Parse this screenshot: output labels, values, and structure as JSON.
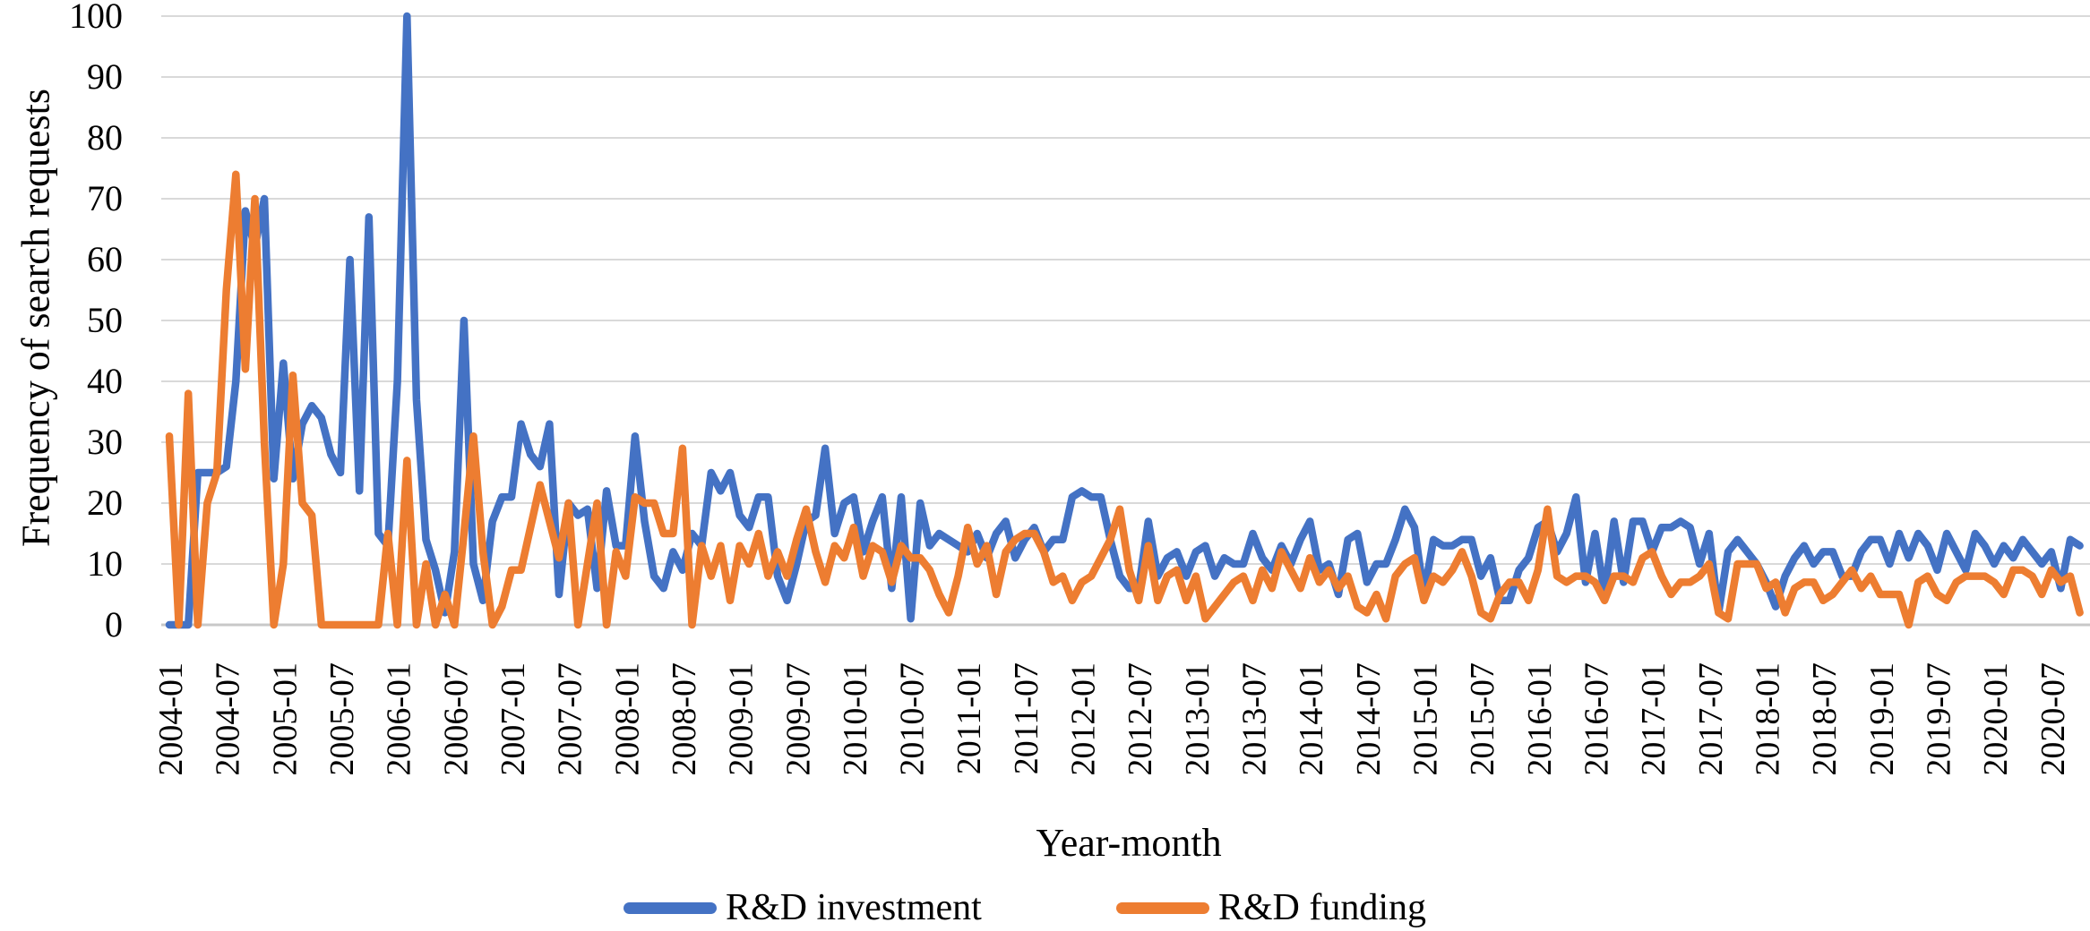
{
  "axes": {
    "x_title": "Year-month",
    "y_title": "Frequency of search requests"
  },
  "legend": {
    "items": [
      {
        "label": "R&D investment",
        "color": "#4472C4"
      },
      {
        "label": "R&D funding",
        "color": "#ED7D31"
      }
    ]
  },
  "chart_data": {
    "type": "line",
    "title": "",
    "xlabel": "Year-month",
    "ylabel": "Frequency of search requests",
    "ylim": [
      0,
      100
    ],
    "y_ticks": [
      100,
      90,
      80,
      70,
      60,
      50,
      40,
      30,
      20,
      10,
      0
    ],
    "grid": "horizontal",
    "gridline_color": "#D9D9D9",
    "axis_line_color": "#C8C8C8",
    "legend_position": "bottom",
    "x_interval": "monthly",
    "x_tick_labels": [
      "2004-01",
      "2004-07",
      "2005-01",
      "2005-07",
      "2006-01",
      "2006-07",
      "2007-01",
      "2007-07",
      "2008-01",
      "2008-07",
      "2009-01",
      "2009-07",
      "2010-01",
      "2010-07",
      "2011-01",
      "2011-07",
      "2012-01",
      "2012-07",
      "2013-01",
      "2013-07",
      "2014-01",
      "2014-07",
      "2015-01",
      "2015-07",
      "2016-01",
      "2016-07",
      "2017-01",
      "2017-07",
      "2018-01",
      "2018-07",
      "2019-01",
      "2019-07",
      "2020-01",
      "2020-07"
    ],
    "categories": [
      "2004-01",
      "2004-02",
      "2004-03",
      "2004-04",
      "2004-05",
      "2004-06",
      "2004-07",
      "2004-08",
      "2004-09",
      "2004-10",
      "2004-11",
      "2004-12",
      "2005-01",
      "2005-02",
      "2005-03",
      "2005-04",
      "2005-05",
      "2005-06",
      "2005-07",
      "2005-08",
      "2005-09",
      "2005-10",
      "2005-11",
      "2005-12",
      "2006-01",
      "2006-02",
      "2006-03",
      "2006-04",
      "2006-05",
      "2006-06",
      "2006-07",
      "2006-08",
      "2006-09",
      "2006-10",
      "2006-11",
      "2006-12",
      "2007-01",
      "2007-02",
      "2007-03",
      "2007-04",
      "2007-05",
      "2007-06",
      "2007-07",
      "2007-08",
      "2007-09",
      "2007-10",
      "2007-11",
      "2007-12",
      "2008-01",
      "2008-02",
      "2008-03",
      "2008-04",
      "2008-05",
      "2008-06",
      "2008-07",
      "2008-08",
      "2008-09",
      "2008-10",
      "2008-11",
      "2008-12",
      "2009-01",
      "2009-02",
      "2009-03",
      "2009-04",
      "2009-05",
      "2009-06",
      "2009-07",
      "2009-08",
      "2009-09",
      "2009-10",
      "2009-11",
      "2009-12",
      "2010-01",
      "2010-02",
      "2010-03",
      "2010-04",
      "2010-05",
      "2010-06",
      "2010-07",
      "2010-08",
      "2010-09",
      "2010-10",
      "2010-11",
      "2010-12",
      "2011-01",
      "2011-02",
      "2011-03",
      "2011-04",
      "2011-05",
      "2011-06",
      "2011-07",
      "2011-08",
      "2011-09",
      "2011-10",
      "2011-11",
      "2011-12",
      "2012-01",
      "2012-02",
      "2012-03",
      "2012-04",
      "2012-05",
      "2012-06",
      "2012-07",
      "2012-08",
      "2012-09",
      "2012-10",
      "2012-11",
      "2012-12",
      "2013-01",
      "2013-02",
      "2013-03",
      "2013-04",
      "2013-05",
      "2013-06",
      "2013-07",
      "2013-08",
      "2013-09",
      "2013-10",
      "2013-11",
      "2013-12",
      "2014-01",
      "2014-02",
      "2014-03",
      "2014-04",
      "2014-05",
      "2014-06",
      "2014-07",
      "2014-08",
      "2014-09",
      "2014-10",
      "2014-11",
      "2014-12",
      "2015-01",
      "2015-02",
      "2015-03",
      "2015-04",
      "2015-05",
      "2015-06",
      "2015-07",
      "2015-08",
      "2015-09",
      "2015-10",
      "2015-11",
      "2015-12",
      "2016-01",
      "2016-02",
      "2016-03",
      "2016-04",
      "2016-05",
      "2016-06",
      "2016-07",
      "2016-08",
      "2016-09",
      "2016-10",
      "2016-11",
      "2016-12",
      "2017-01",
      "2017-02",
      "2017-03",
      "2017-04",
      "2017-05",
      "2017-06",
      "2017-07",
      "2017-08",
      "2017-09",
      "2017-10",
      "2017-11",
      "2017-12",
      "2018-01",
      "2018-02",
      "2018-03",
      "2018-04",
      "2018-05",
      "2018-06",
      "2018-07",
      "2018-08",
      "2018-09",
      "2018-10",
      "2018-11",
      "2018-12",
      "2019-01",
      "2019-02",
      "2019-03",
      "2019-04",
      "2019-05",
      "2019-06",
      "2019-07",
      "2019-08",
      "2019-09",
      "2019-10",
      "2019-11",
      "2019-12",
      "2020-01",
      "2020-02",
      "2020-03",
      "2020-04",
      "2020-05",
      "2020-06",
      "2020-07",
      "2020-08",
      "2020-09",
      "2020-10"
    ],
    "series": [
      {
        "name": "R&D investment",
        "color": "#4472C4",
        "values": [
          0,
          0,
          0,
          25,
          25,
          25,
          26,
          40,
          68,
          62,
          70,
          24,
          43,
          24,
          33,
          36,
          34,
          28,
          25,
          60,
          22,
          67,
          15,
          13,
          40,
          100,
          37,
          14,
          9,
          2,
          12,
          50,
          10,
          4,
          17,
          21,
          21,
          33,
          28,
          26,
          33,
          5,
          20,
          18,
          19,
          6,
          22,
          13,
          13,
          31,
          17,
          8,
          6,
          12,
          9,
          15,
          13,
          25,
          22,
          25,
          18,
          16,
          21,
          21,
          8,
          4,
          10,
          17,
          18,
          29,
          15,
          20,
          21,
          12,
          17,
          21,
          6,
          21,
          1,
          20,
          13,
          15,
          14,
          13,
          12,
          15,
          11,
          15,
          17,
          11,
          14,
          16,
          12,
          14,
          14,
          21,
          22,
          21,
          21,
          14,
          8,
          6,
          6,
          17,
          8,
          11,
          12,
          8,
          12,
          13,
          8,
          11,
          10,
          10,
          15,
          11,
          9,
          13,
          10,
          14,
          17,
          9,
          10,
          5,
          14,
          15,
          7,
          10,
          10,
          14,
          19,
          16,
          5,
          14,
          13,
          13,
          14,
          14,
          8,
          11,
          4,
          4,
          9,
          11,
          16,
          17,
          12,
          15,
          21,
          7,
          15,
          5,
          17,
          7,
          17,
          17,
          12,
          16,
          16,
          17,
          16,
          10,
          15,
          2,
          12,
          14,
          12,
          10,
          7,
          3,
          8,
          11,
          13,
          10,
          12,
          12,
          8,
          8,
          12,
          14,
          14,
          10,
          15,
          11,
          15,
          13,
          9,
          15,
          12,
          9,
          15,
          13,
          10,
          13,
          11,
          14,
          12,
          10,
          12,
          6,
          14,
          13
        ]
      },
      {
        "name": "R&D funding",
        "color": "#ED7D31",
        "values": [
          31,
          0,
          38,
          0,
          20,
          25,
          55,
          74,
          42,
          70,
          30,
          0,
          10,
          41,
          20,
          18,
          0,
          0,
          0,
          0,
          0,
          0,
          0,
          15,
          0,
          27,
          0,
          10,
          0,
          5,
          0,
          15,
          31,
          12,
          0,
          3,
          9,
          9,
          16,
          23,
          17,
          11,
          20,
          0,
          10,
          20,
          0,
          12,
          8,
          21,
          20,
          20,
          15,
          15,
          29,
          0,
          13,
          8,
          13,
          4,
          13,
          10,
          15,
          8,
          12,
          8,
          14,
          19,
          12,
          7,
          13,
          11,
          16,
          8,
          13,
          12,
          7,
          13,
          11,
          11,
          9,
          5,
          2,
          8,
          16,
          10,
          13,
          5,
          12,
          14,
          15,
          15,
          12,
          7,
          8,
          4,
          7,
          8,
          11,
          14,
          19,
          9,
          4,
          13,
          4,
          8,
          9,
          4,
          8,
          1,
          3,
          5,
          7,
          8,
          4,
          9,
          6,
          12,
          9,
          6,
          11,
          7,
          9,
          6,
          8,
          3,
          2,
          5,
          1,
          8,
          10,
          11,
          4,
          8,
          7,
          9,
          12,
          8,
          2,
          1,
          5,
          7,
          7,
          4,
          9,
          19,
          8,
          7,
          8,
          8,
          7,
          4,
          8,
          8,
          7,
          11,
          12,
          8,
          5,
          7,
          7,
          8,
          10,
          2,
          1,
          10,
          10,
          10,
          6,
          7,
          2,
          6,
          7,
          7,
          4,
          5,
          7,
          9,
          6,
          8,
          5,
          5,
          5,
          0,
          7,
          8,
          5,
          4,
          7,
          8,
          8,
          8,
          7,
          5,
          9,
          9,
          8,
          5,
          9,
          7,
          8,
          2
        ]
      }
    ]
  }
}
